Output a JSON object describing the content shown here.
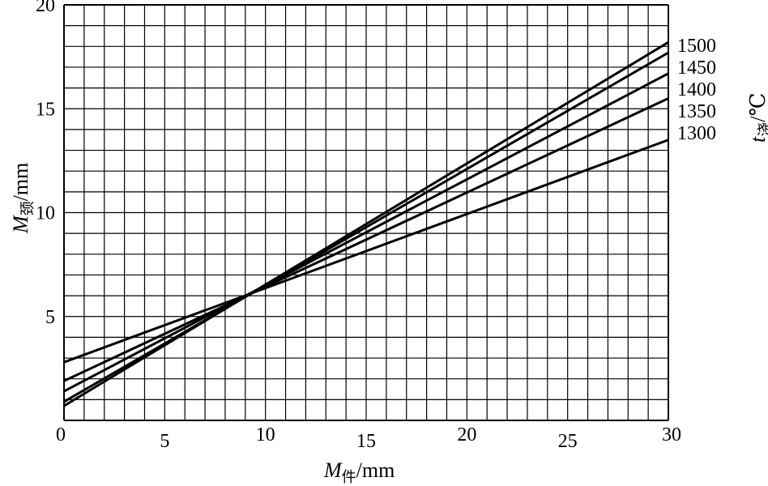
{
  "chart_data": {
    "type": "line",
    "title": "",
    "xlabel": {
      "main": "M",
      "sub": "件",
      "unit": "/mm"
    },
    "ylabel": {
      "main": "M",
      "sub": "颈",
      "unit": "/mm"
    },
    "xlim": [
      0,
      30
    ],
    "ylim": [
      0,
      20
    ],
    "x_ticks": [
      "0",
      "5",
      "10",
      "15",
      "20",
      "25",
      "30"
    ],
    "y_ticks": [
      "5",
      "10",
      "15",
      "20"
    ],
    "minor_step": 1,
    "grid": true,
    "legend": {
      "title_main": "t",
      "title_sub": "浇",
      "title_unit": "/℃",
      "placement": "right"
    },
    "series": [
      {
        "name": "1500",
        "x": [
          0,
          30
        ],
        "y": [
          0.7,
          18.2
        ]
      },
      {
        "name": "1450",
        "x": [
          0,
          30
        ],
        "y": [
          0.9,
          17.7
        ]
      },
      {
        "name": "1400",
        "x": [
          0,
          30
        ],
        "y": [
          1.4,
          16.7
        ]
      },
      {
        "name": "1350",
        "x": [
          0,
          30
        ],
        "y": [
          1.9,
          15.5
        ]
      },
      {
        "name": "1300",
        "x": [
          0,
          30
        ],
        "y": [
          2.8,
          13.5
        ]
      }
    ]
  }
}
